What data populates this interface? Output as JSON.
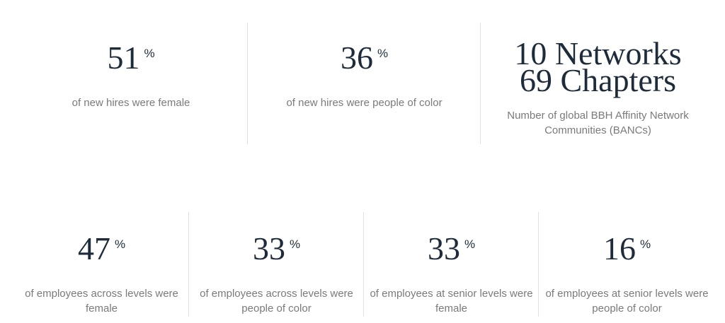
{
  "top_row": [
    {
      "value": "51",
      "unit": "%",
      "description": "of new hires were female"
    },
    {
      "value": "36",
      "unit": "%",
      "description": "of new hires were people of color"
    },
    {
      "lines": [
        "10 Networks",
        "69 Chapters"
      ],
      "description": "Number of global BBH Affinity Network Communities (BANCs)"
    }
  ],
  "bottom_row": [
    {
      "value": "47",
      "unit": "%",
      "description": "of employees across levels were female"
    },
    {
      "value": "33",
      "unit": "%",
      "description": "of employees across levels were people of color"
    },
    {
      "value": "33",
      "unit": "%",
      "description": "of employees at senior levels were female"
    },
    {
      "value": "16",
      "unit": "%",
      "description": "of employees at senior levels were people of color"
    }
  ]
}
